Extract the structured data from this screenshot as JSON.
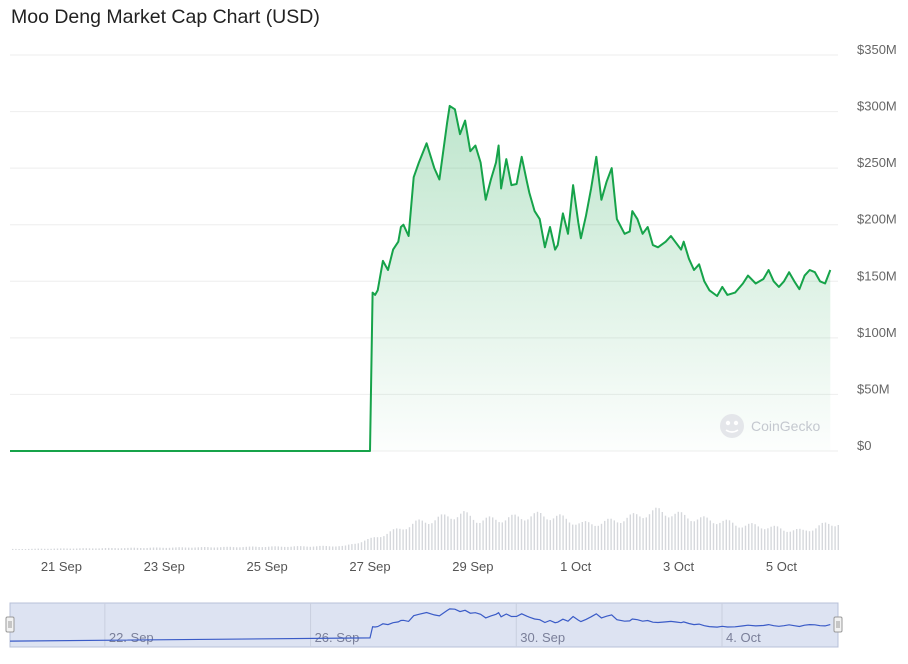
{
  "chart_data": {
    "type": "area",
    "title": "Moo Deng Market Cap Chart (USD)",
    "currency": "USD",
    "y_ticks": [
      "$0",
      "$50M",
      "$100M",
      "$150M",
      "$200M",
      "$250M",
      "$300M",
      "$350M"
    ],
    "y_tick_values": [
      0,
      50,
      100,
      150,
      200,
      250,
      300,
      350
    ],
    "ylim": [
      0,
      350
    ],
    "x_tick_labels": [
      "21 Sep",
      "23 Sep",
      "25 Sep",
      "27 Sep",
      "29 Sep",
      "1 Oct",
      "3 Oct",
      "5 Oct"
    ],
    "x_tick_values": [
      1.5,
      3.5,
      5.5,
      7.5,
      9.5,
      11.5,
      13.5,
      15.5
    ],
    "xlim": [
      0.5,
      16.6
    ],
    "grid": true,
    "line_color": "#16a34a",
    "fill_color": "#16a34a",
    "series": [
      {
        "x": [
          0.5,
          7.5,
          7.55,
          7.6,
          7.65,
          7.75,
          7.85,
          7.95,
          8.05,
          8.1,
          8.15,
          8.25,
          8.35,
          8.45,
          8.6,
          8.75,
          8.85,
          9.0,
          9.05,
          9.15,
          9.25,
          9.35,
          9.45,
          9.55,
          9.65,
          9.75,
          9.85,
          9.95,
          10.0,
          10.05,
          10.15,
          10.25,
          10.35,
          10.45,
          10.55,
          10.6,
          10.7,
          10.8,
          10.9,
          11.0,
          11.1,
          11.15,
          11.25,
          11.35,
          11.45,
          11.55,
          11.6,
          11.7,
          11.8,
          11.9,
          12.0,
          12.1,
          12.2,
          12.3,
          12.45,
          12.55,
          12.6,
          12.7,
          12.8,
          12.9,
          13.0,
          13.1,
          13.25,
          13.35,
          13.45,
          13.55,
          13.6,
          13.7,
          13.8,
          13.9,
          14.0,
          14.1,
          14.25,
          14.35,
          14.45,
          14.6,
          14.75,
          14.85,
          15.0,
          15.15,
          15.25,
          15.35,
          15.45,
          15.55,
          15.65,
          15.75,
          15.85,
          15.95,
          16.05,
          16.15,
          16.25,
          16.35,
          16.45
        ],
        "values": [
          0,
          0,
          140,
          138,
          142,
          168,
          160,
          178,
          185,
          198,
          200,
          190,
          242,
          255,
          272,
          250,
          240,
          290,
          305,
          302,
          280,
          292,
          265,
          270,
          255,
          222,
          240,
          255,
          270,
          232,
          258,
          235,
          236,
          260,
          238,
          228,
          212,
          205,
          180,
          198,
          178,
          182,
          210,
          192,
          235,
          202,
          188,
          208,
          232,
          260,
          222,
          238,
          250,
          205,
          192,
          194,
          212,
          205,
          192,
          198,
          182,
          180,
          185,
          190,
          184,
          178,
          185,
          170,
          160,
          165,
          150,
          142,
          137,
          145,
          138,
          140,
          148,
          155,
          148,
          152,
          160,
          150,
          145,
          150,
          158,
          150,
          143,
          155,
          160,
          158,
          150,
          148,
          160
        ]
      }
    ],
    "volume": {
      "x": [
        0.5,
        7.0,
        7.5,
        8.0,
        8.4,
        8.7,
        9.0,
        9.3,
        9.6,
        10.0,
        10.4,
        10.8,
        11.2,
        11.6,
        12.0,
        12.4,
        12.8,
        13.1,
        13.5,
        13.9,
        14.3,
        14.7,
        15.1,
        15.5,
        15.9,
        16.3,
        16.6
      ],
      "values": [
        0.02,
        0.08,
        0.22,
        0.4,
        0.55,
        0.6,
        0.68,
        0.72,
        0.6,
        0.62,
        0.66,
        0.7,
        0.65,
        0.52,
        0.55,
        0.62,
        0.72,
        0.78,
        0.7,
        0.62,
        0.58,
        0.5,
        0.48,
        0.42,
        0.38,
        0.5,
        0.55
      ]
    },
    "navigator": {
      "x_tick_labels": [
        "22. Sep",
        "26. Sep",
        "30. Sep",
        "4. Oct"
      ],
      "x_tick_values": [
        2.5,
        6.5,
        10.5,
        14.5
      ]
    },
    "watermark": "CoinGecko"
  }
}
